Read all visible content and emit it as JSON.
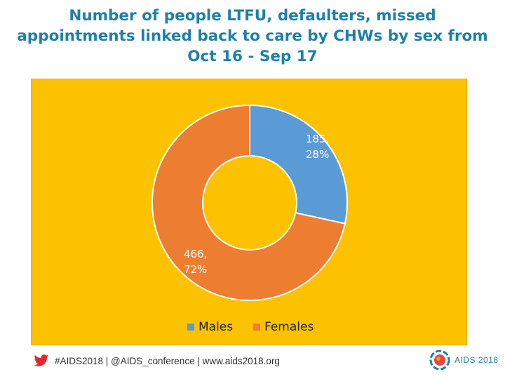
{
  "chart_data": {
    "type": "pie",
    "title": "Number of people LTFU, defaulters, missed appointments linked back to care by CHWs by sex from Oct 16 - Sep 17",
    "donut": true,
    "categories": [
      "Males",
      "Females"
    ],
    "values": [
      185,
      466
    ],
    "percent_labels": [
      "28%",
      "72%"
    ],
    "colors": [
      "#5b9bd5",
      "#ed7d31"
    ],
    "background": "#fcc200",
    "legend": "bottom"
  },
  "footer": {
    "text": "#AIDS2018 | @AIDS_conference | www.aids2018.org",
    "icon": "twitter-bird-icon"
  },
  "logo": {
    "text": "AIDS 2018",
    "icon": "aids2018-logo-icon"
  }
}
